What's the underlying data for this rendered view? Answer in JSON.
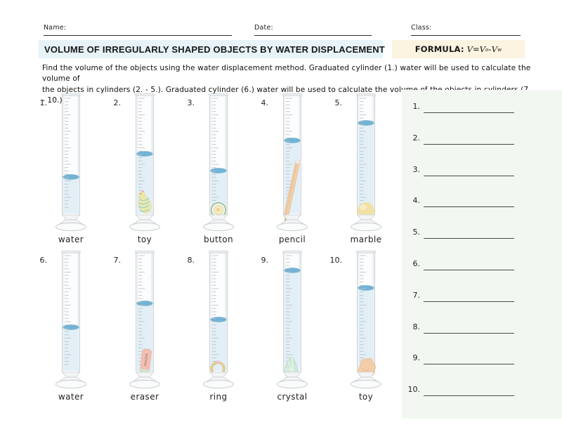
{
  "header": {
    "name_label": "Name:",
    "date_label": "Date:",
    "class_label": "Class:"
  },
  "title": "VOLUME OF IRREGULARLY SHAPED OBJECTS BY WATER DISPLACEMENT",
  "formula": {
    "label": "FORMULA:",
    "v": "V",
    "eq": " = ",
    "v0": "V",
    "sub0": "o",
    "minus": "- ",
    "vw": "V",
    "subw": "w"
  },
  "instructions": {
    "line1": "Find the volume of the objects using the water displacement method. Graduated cylinder (1.) water will be used to calculate the volume of",
    "line2": "the objects in cylinders (2. - 5.).  Graduated cylinder (6.) water will be used to calculate the volume of the objects in cylinders (7. - 10.)."
  },
  "colors": {
    "water_surface": "#74b2d3",
    "water_fill": "#e2eff6",
    "title_bg": "#e7f3f9",
    "formula_bg": "#fcf3e1",
    "panel_bg": "#f2f8f1",
    "glass_stroke": "#c8cdd1"
  },
  "cylinders": [
    {
      "num": "1.",
      "label": "water",
      "object": "water",
      "water_level": 119,
      "row": 0,
      "col": 0
    },
    {
      "num": "2.",
      "label": "toy",
      "object": "toy_yellow",
      "water_level": 86,
      "row": 0,
      "col": 1
    },
    {
      "num": "3.",
      "label": "button",
      "object": "button",
      "water_level": 110,
      "row": 0,
      "col": 2
    },
    {
      "num": "4.",
      "label": "pencil",
      "object": "pencil",
      "water_level": 67,
      "row": 0,
      "col": 3
    },
    {
      "num": "5.",
      "label": "marble",
      "object": "marble",
      "water_level": 42,
      "row": 0,
      "col": 4
    },
    {
      "num": "6.",
      "label": "water",
      "object": "water",
      "water_level": 109,
      "row": 1,
      "col": 0
    },
    {
      "num": "7.",
      "label": "eraser",
      "object": "eraser",
      "water_level": 75,
      "row": 1,
      "col": 1
    },
    {
      "num": "8.",
      "label": "ring",
      "object": "ring",
      "water_level": 98,
      "row": 1,
      "col": 2
    },
    {
      "num": "9.",
      "label": "crystal",
      "object": "crystal",
      "water_level": 28,
      "row": 1,
      "col": 3
    },
    {
      "num": "10.",
      "label": "toy",
      "object": "toy_orange",
      "water_level": 53,
      "row": 1,
      "col": 4
    }
  ],
  "answers": [
    "1.",
    "2.",
    "3.",
    "4.",
    "5.",
    "6.",
    "7.",
    "8.",
    "9.",
    "10."
  ],
  "eraser_text": "ERASER"
}
